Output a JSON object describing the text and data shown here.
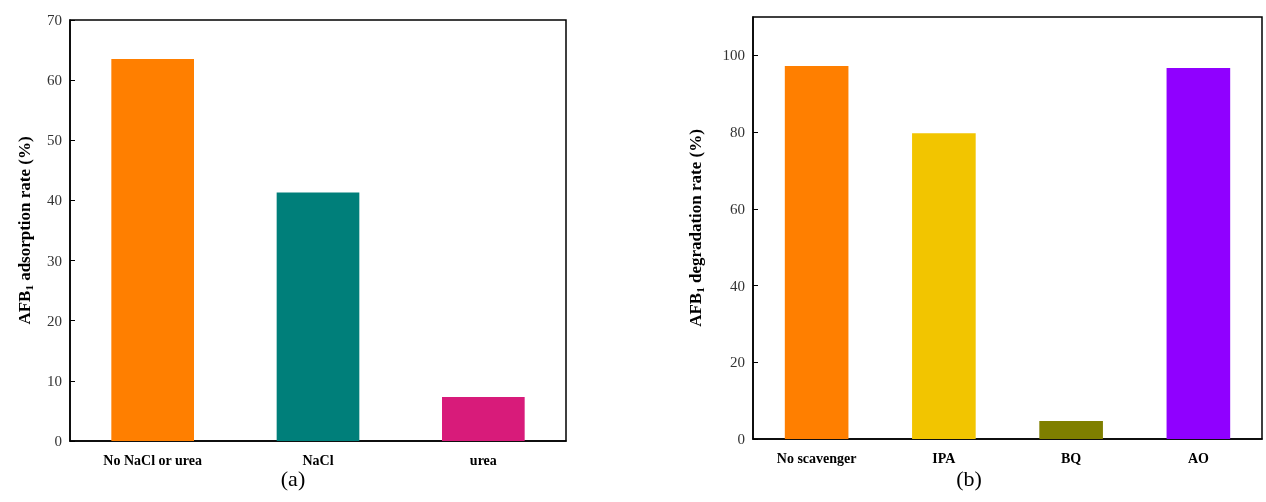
{
  "chart_data": [
    {
      "type": "bar",
      "title": "(a)",
      "ylabel": "AFB$_{1}$ adsorption rate (%)",
      "categories": [
        "No NaCl or urea",
        "NaCl",
        "urea"
      ],
      "values": [
        63.5,
        41.3,
        7.3
      ],
      "colors": [
        "#ff7f00",
        "#007f7a",
        "#d81b7a"
      ],
      "ylim": [
        0,
        70
      ],
      "yticks": [
        0,
        10,
        20,
        30,
        40,
        50,
        60,
        70
      ],
      "grid": false
    },
    {
      "type": "bar",
      "title": "(b)",
      "ylabel": "AFB$_{1}$ degradation rate (%)",
      "categories": [
        "No scavenger",
        "IPA",
        "BQ",
        "AO"
      ],
      "values": [
        97.2,
        79.7,
        4.7,
        96.7
      ],
      "colors": [
        "#ff7f00",
        "#f2c500",
        "#7f7f00",
        "#9000ff"
      ],
      "ylim": [
        0,
        110
      ],
      "yticks": [
        0,
        20,
        40,
        60,
        80,
        100
      ],
      "grid": false
    }
  ]
}
